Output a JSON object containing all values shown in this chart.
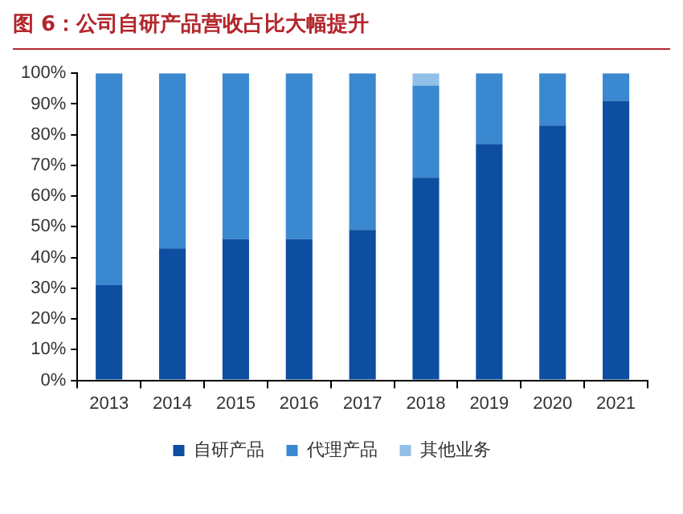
{
  "chart_data": {
    "type": "bar",
    "title": "图 6：公司自研产品营收占比大幅提升",
    "categories": [
      "2013",
      "2014",
      "2015",
      "2016",
      "2017",
      "2018",
      "2019",
      "2020",
      "2021"
    ],
    "stacked": true,
    "series": [
      {
        "name": "自研产品",
        "color": "#0d4ea0",
        "values": [
          31,
          43,
          46,
          46,
          49,
          66,
          77,
          83,
          91
        ]
      },
      {
        "name": "代理产品",
        "color": "#3a88d0",
        "values": [
          69,
          57,
          54,
          54,
          51,
          30,
          23,
          17,
          9
        ]
      },
      {
        "name": "其他业务",
        "color": "#92c0e8",
        "values": [
          0,
          0,
          0,
          0,
          0,
          4,
          0,
          0,
          0
        ]
      }
    ],
    "ylim": [
      0,
      100
    ],
    "yticks": [
      {
        "value": 0,
        "label": "0%"
      },
      {
        "value": 10,
        "label": "10%"
      },
      {
        "value": 20,
        "label": "20%"
      },
      {
        "value": 30,
        "label": "30%"
      },
      {
        "value": 40,
        "label": "40%"
      },
      {
        "value": 50,
        "label": "50%"
      },
      {
        "value": 60,
        "label": "60%"
      },
      {
        "value": 70,
        "label": "70%"
      },
      {
        "value": 80,
        "label": "80%"
      },
      {
        "value": 90,
        "label": "90%"
      },
      {
        "value": 100,
        "label": "100%"
      }
    ],
    "grid": false,
    "legend": "bottom"
  }
}
